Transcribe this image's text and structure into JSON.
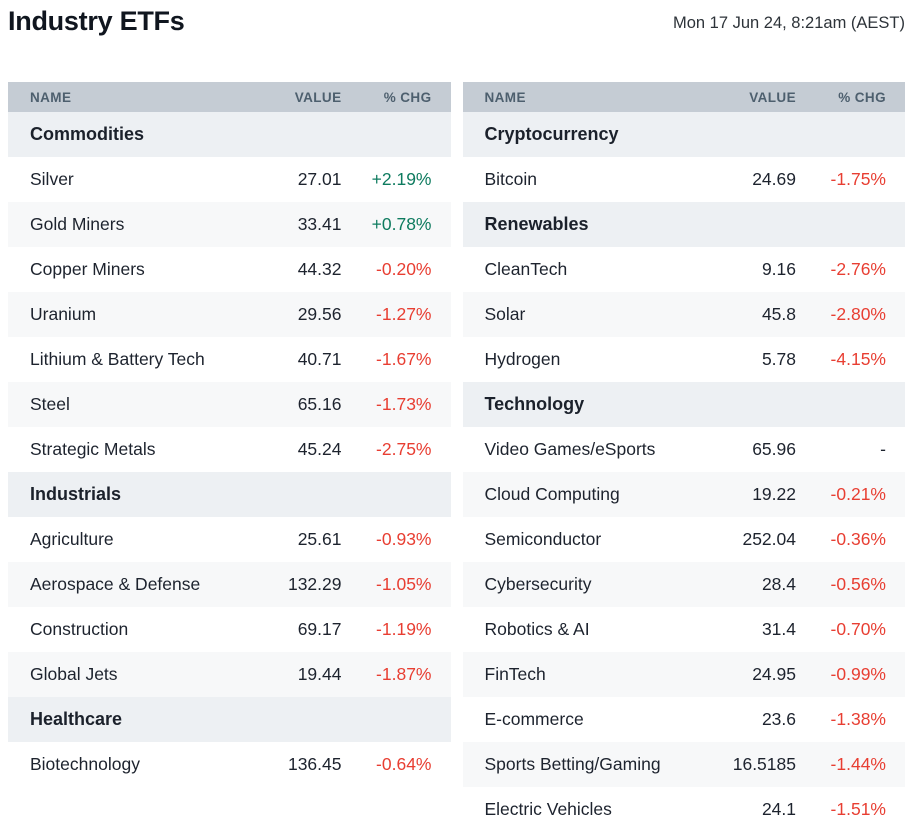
{
  "header": {
    "title": "Industry ETFs",
    "timestamp": "Mon 17 Jun 24, 8:21am (AEST)"
  },
  "columns": {
    "name": "NAME",
    "value": "VALUE",
    "chg": "% CHG"
  },
  "colors": {
    "positive": "#0e7b5f",
    "negative": "#e83e32",
    "neutral_text": "#1d232e",
    "column_header_bg": "#c5ccd4",
    "column_header_text": "#4d5f6e",
    "section_header_bg": "#edf0f3",
    "stripe_bg": "#f7f8f9",
    "page_bg": "#ffffff"
  },
  "tables": [
    {
      "sections": [
        {
          "title": "Commodities",
          "rows": [
            {
              "name": "Silver",
              "value": "27.01",
              "chg": "+2.19%",
              "direction": "up"
            },
            {
              "name": "Gold Miners",
              "value": "33.41",
              "chg": "+0.78%",
              "direction": "up"
            },
            {
              "name": "Copper Miners",
              "value": "44.32",
              "chg": "-0.20%",
              "direction": "down"
            },
            {
              "name": "Uranium",
              "value": "29.56",
              "chg": "-1.27%",
              "direction": "down"
            },
            {
              "name": "Lithium & Battery Tech",
              "value": "40.71",
              "chg": "-1.67%",
              "direction": "down"
            },
            {
              "name": "Steel",
              "value": "65.16",
              "chg": "-1.73%",
              "direction": "down"
            },
            {
              "name": "Strategic Metals",
              "value": "45.24",
              "chg": "-2.75%",
              "direction": "down"
            }
          ]
        },
        {
          "title": "Industrials",
          "rows": [
            {
              "name": "Agriculture",
              "value": "25.61",
              "chg": "-0.93%",
              "direction": "down"
            },
            {
              "name": "Aerospace & Defense",
              "value": "132.29",
              "chg": "-1.05%",
              "direction": "down"
            },
            {
              "name": "Construction",
              "value": "69.17",
              "chg": "-1.19%",
              "direction": "down"
            },
            {
              "name": "Global Jets",
              "value": "19.44",
              "chg": "-1.87%",
              "direction": "down"
            }
          ]
        },
        {
          "title": "Healthcare",
          "rows": [
            {
              "name": "Biotechnology",
              "value": "136.45",
              "chg": "-0.64%",
              "direction": "down"
            }
          ]
        }
      ]
    },
    {
      "sections": [
        {
          "title": "Cryptocurrency",
          "rows": [
            {
              "name": "Bitcoin",
              "value": "24.69",
              "chg": "-1.75%",
              "direction": "down"
            }
          ]
        },
        {
          "title": "Renewables",
          "rows": [
            {
              "name": "CleanTech",
              "value": "9.16",
              "chg": "-2.76%",
              "direction": "down"
            },
            {
              "name": "Solar",
              "value": "45.8",
              "chg": "-2.80%",
              "direction": "down"
            },
            {
              "name": "Hydrogen",
              "value": "5.78",
              "chg": "-4.15%",
              "direction": "down"
            }
          ]
        },
        {
          "title": "Technology",
          "rows": [
            {
              "name": "Video Games/eSports",
              "value": "65.96",
              "chg": "-",
              "direction": "flat"
            },
            {
              "name": "Cloud Computing",
              "value": "19.22",
              "chg": "-0.21%",
              "direction": "down"
            },
            {
              "name": "Semiconductor",
              "value": "252.04",
              "chg": "-0.36%",
              "direction": "down"
            },
            {
              "name": "Cybersecurity",
              "value": "28.4",
              "chg": "-0.56%",
              "direction": "down"
            },
            {
              "name": "Robotics & AI",
              "value": "31.4",
              "chg": "-0.70%",
              "direction": "down"
            },
            {
              "name": "FinTech",
              "value": "24.95",
              "chg": "-0.99%",
              "direction": "down"
            },
            {
              "name": "E-commerce",
              "value": "23.6",
              "chg": "-1.38%",
              "direction": "down"
            },
            {
              "name": "Sports Betting/Gaming",
              "value": "16.5185",
              "chg": "-1.44%",
              "direction": "down"
            },
            {
              "name": "Electric Vehicles",
              "value": "24.1",
              "chg": "-1.51%",
              "direction": "down"
            }
          ]
        }
      ]
    }
  ]
}
